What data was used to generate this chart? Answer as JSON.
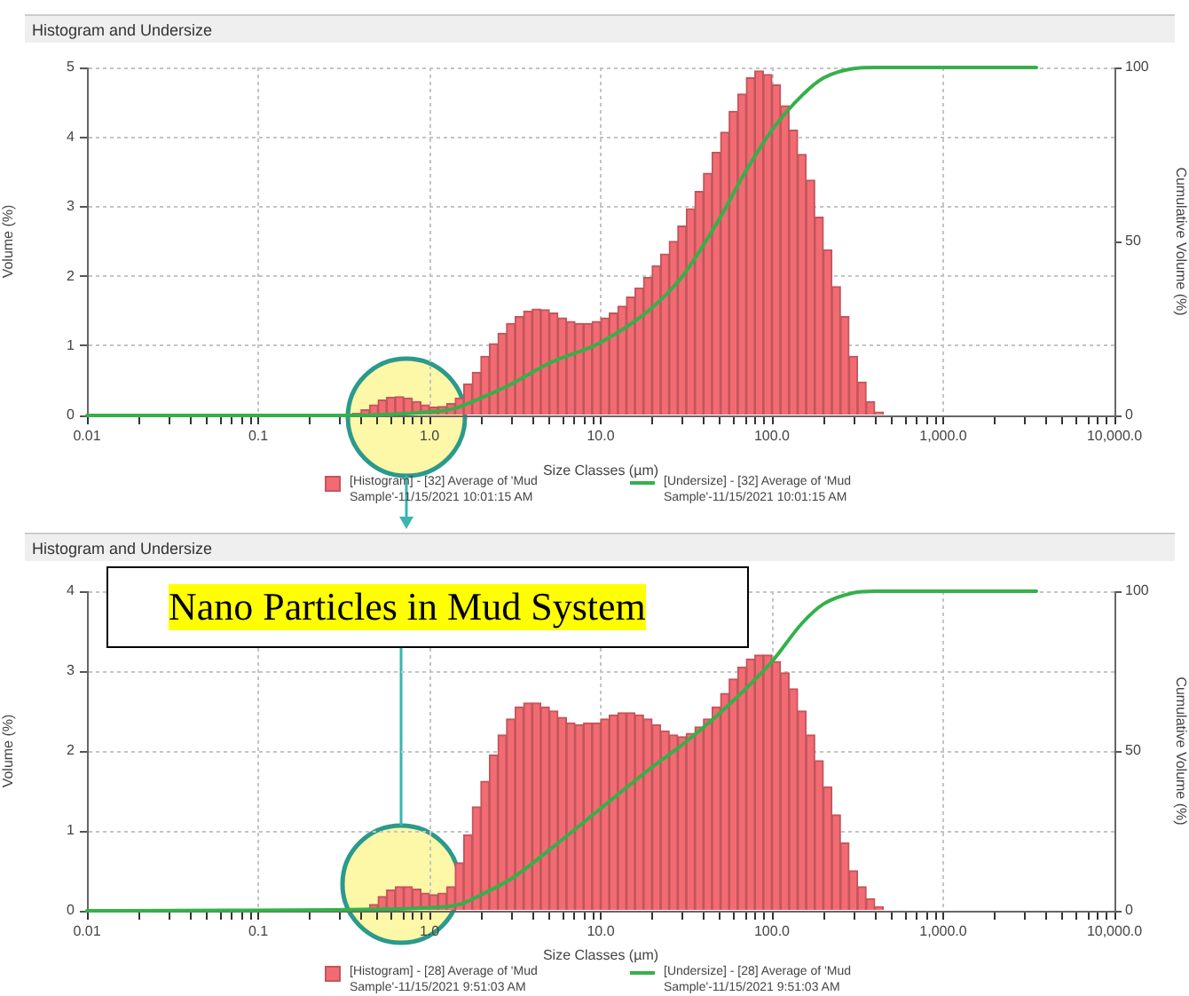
{
  "chart_data": [
    {
      "type": "histogram",
      "title": "Histogram and Undersize",
      "xlabel": "Size Classes (µm)",
      "ylabel": "Volume (%)",
      "y2label": "Cumulative Volume (%)",
      "log": "x",
      "xlim": [
        0.01,
        10000
      ],
      "xticks": [
        {
          "value": 0.01,
          "label": "0.01"
        },
        {
          "value": 0.02,
          "label": null
        },
        {
          "value": 0.03,
          "label": null
        },
        {
          "value": 0.04,
          "label": null
        },
        {
          "value": 0.05,
          "label": null
        },
        {
          "value": 0.06,
          "label": null
        },
        {
          "value": 0.07,
          "label": null
        },
        {
          "value": 0.08,
          "label": null
        },
        {
          "value": 0.09,
          "label": null
        },
        {
          "value": 0.1,
          "label": "0.1"
        },
        {
          "value": 0.2,
          "label": null
        },
        {
          "value": 0.3,
          "label": null
        },
        {
          "value": 0.4,
          "label": null
        },
        {
          "value": 0.5,
          "label": null
        },
        {
          "value": 0.6,
          "label": null
        },
        {
          "value": 0.7,
          "label": null
        },
        {
          "value": 0.8,
          "label": null
        },
        {
          "value": 0.9,
          "label": null
        },
        {
          "value": 1,
          "label": "1.0"
        },
        {
          "value": 2,
          "label": null
        },
        {
          "value": 3,
          "label": null
        },
        {
          "value": 4,
          "label": null
        },
        {
          "value": 5,
          "label": null
        },
        {
          "value": 6,
          "label": null
        },
        {
          "value": 7,
          "label": null
        },
        {
          "value": 8,
          "label": null
        },
        {
          "value": 9,
          "label": null
        },
        {
          "value": 10,
          "label": "10.0"
        },
        {
          "value": 20,
          "label": null
        },
        {
          "value": 30,
          "label": null
        },
        {
          "value": 40,
          "label": null
        },
        {
          "value": 50,
          "label": null
        },
        {
          "value": 60,
          "label": null
        },
        {
          "value": 70,
          "label": null
        },
        {
          "value": 80,
          "label": null
        },
        {
          "value": 90,
          "label": null
        },
        {
          "value": 100,
          "label": "100.0"
        },
        {
          "value": 200,
          "label": null
        },
        {
          "value": 300,
          "label": null
        },
        {
          "value": 400,
          "label": null
        },
        {
          "value": 500,
          "label": null
        },
        {
          "value": 600,
          "label": null
        },
        {
          "value": 700,
          "label": null
        },
        {
          "value": 800,
          "label": null
        },
        {
          "value": 900,
          "label": null
        },
        {
          "value": 1000,
          "label": "1,000.0"
        },
        {
          "value": 2000,
          "label": null
        },
        {
          "value": 3000,
          "label": null
        },
        {
          "value": 4000,
          "label": null
        },
        {
          "value": 5000,
          "label": null
        },
        {
          "value": 6000,
          "label": null
        },
        {
          "value": 7000,
          "label": null
        },
        {
          "value": 8000,
          "label": null
        },
        {
          "value": 9000,
          "label": null
        },
        {
          "value": 10000,
          "label": "10,000.0"
        }
      ],
      "ylim": [
        0,
        5
      ],
      "yticks": [
        0,
        1,
        2,
        3,
        4,
        5
      ],
      "y2lim": [
        0,
        100
      ],
      "y2ticks": [
        0,
        50,
        100
      ],
      "grid": true,
      "legend": "bottom",
      "series": [
        {
          "name": "[Histogram] - [32] Average of 'Mud Sample'-11/15/2021 10:01:15 AM",
          "color": "#f26b73",
          "bins": [
            0.3548,
            0.3981,
            0.4467,
            0.5012,
            0.5623,
            0.631,
            0.7079,
            0.7943,
            0.8913,
            1,
            1.122,
            1.259,
            1.413,
            1.585,
            1.778,
            1.995,
            2.239,
            2.512,
            2.818,
            3.162,
            3.548,
            3.981,
            4.467,
            5.012,
            5.623,
            6.31,
            7.079,
            7.943,
            8.913,
            10,
            11.22,
            12.59,
            14.13,
            15.85,
            17.78,
            19.95,
            22.39,
            25.12,
            28.18,
            31.62,
            35.48,
            39.81,
            44.67,
            50.12,
            56.23,
            63.1,
            70.79,
            79.43,
            89.13,
            100,
            112.2,
            125.9,
            141.3,
            158.5,
            177.8,
            199.5,
            223.9,
            251.2,
            281.8,
            316.2,
            354.8,
            398.1,
            446.7
          ],
          "values": [
            0.03,
            0.08,
            0.15,
            0.22,
            0.26,
            0.27,
            0.25,
            0.2,
            0.15,
            0.12,
            0.13,
            0.17,
            0.25,
            0.45,
            0.62,
            0.85,
            1.03,
            1.18,
            1.32,
            1.42,
            1.5,
            1.53,
            1.52,
            1.47,
            1.4,
            1.35,
            1.32,
            1.32,
            1.35,
            1.4,
            1.47,
            1.57,
            1.7,
            1.83,
            1.98,
            2.15,
            2.32,
            2.5,
            2.72,
            2.97,
            3.22,
            3.48,
            3.78,
            4.07,
            4.37,
            4.62,
            4.85,
            4.95,
            4.9,
            4.75,
            4.45,
            4.1,
            3.75,
            3.38,
            2.85,
            2.38,
            1.85,
            1.42,
            0.85,
            0.48,
            0.2,
            0.05
          ]
        },
        {
          "type": "line",
          "axis": "y2",
          "name": "[Undersize] - [32] Average of 'Mud Sample'-11/15/2021 10:01:15 AM",
          "color": "#35b04a",
          "x": [
            0.01,
            0.3,
            1,
            1.4,
            2,
            3,
            5,
            10,
            20,
            30,
            50,
            70,
            100,
            150,
            200,
            300,
            400,
            3500
          ],
          "values": [
            0,
            0,
            1,
            2,
            5,
            9,
            15,
            21,
            31,
            40,
            57,
            70,
            82,
            92,
            97,
            99.7,
            100,
            100
          ]
        }
      ]
    },
    {
      "type": "histogram",
      "title": "Histogram and Undersize",
      "xlabel": "Size Classes (µm)",
      "ylabel": "Volume (%)",
      "y2label": "Cumulative Volume (%)",
      "log": "x",
      "xlim": [
        0.01,
        10000
      ],
      "xticks": [
        {
          "value": 0.01,
          "label": "0.01"
        },
        {
          "value": 0.02,
          "label": null
        },
        {
          "value": 0.03,
          "label": null
        },
        {
          "value": 0.04,
          "label": null
        },
        {
          "value": 0.05,
          "label": null
        },
        {
          "value": 0.06,
          "label": null
        },
        {
          "value": 0.07,
          "label": null
        },
        {
          "value": 0.08,
          "label": null
        },
        {
          "value": 0.09,
          "label": null
        },
        {
          "value": 0.1,
          "label": "0.1"
        },
        {
          "value": 0.2,
          "label": null
        },
        {
          "value": 0.3,
          "label": null
        },
        {
          "value": 0.4,
          "label": null
        },
        {
          "value": 0.5,
          "label": null
        },
        {
          "value": 0.6,
          "label": null
        },
        {
          "value": 0.7,
          "label": null
        },
        {
          "value": 0.8,
          "label": null
        },
        {
          "value": 0.9,
          "label": null
        },
        {
          "value": 1,
          "label": "1.0"
        },
        {
          "value": 2,
          "label": null
        },
        {
          "value": 3,
          "label": null
        },
        {
          "value": 4,
          "label": null
        },
        {
          "value": 5,
          "label": null
        },
        {
          "value": 6,
          "label": null
        },
        {
          "value": 7,
          "label": null
        },
        {
          "value": 8,
          "label": null
        },
        {
          "value": 9,
          "label": null
        },
        {
          "value": 10,
          "label": "10.0"
        },
        {
          "value": 20,
          "label": null
        },
        {
          "value": 30,
          "label": null
        },
        {
          "value": 40,
          "label": null
        },
        {
          "value": 50,
          "label": null
        },
        {
          "value": 60,
          "label": null
        },
        {
          "value": 70,
          "label": null
        },
        {
          "value": 80,
          "label": null
        },
        {
          "value": 90,
          "label": null
        },
        {
          "value": 100,
          "label": "100.0"
        },
        {
          "value": 200,
          "label": null
        },
        {
          "value": 300,
          "label": null
        },
        {
          "value": 400,
          "label": null
        },
        {
          "value": 500,
          "label": null
        },
        {
          "value": 600,
          "label": null
        },
        {
          "value": 700,
          "label": null
        },
        {
          "value": 800,
          "label": null
        },
        {
          "value": 900,
          "label": null
        },
        {
          "value": 1000,
          "label": "1,000.0"
        },
        {
          "value": 2000,
          "label": null
        },
        {
          "value": 3000,
          "label": null
        },
        {
          "value": 4000,
          "label": null
        },
        {
          "value": 5000,
          "label": null
        },
        {
          "value": 6000,
          "label": null
        },
        {
          "value": 7000,
          "label": null
        },
        {
          "value": 8000,
          "label": null
        },
        {
          "value": 9000,
          "label": null
        },
        {
          "value": 10000,
          "label": "10,000.0"
        }
      ],
      "ylim": [
        0,
        4
      ],
      "yticks": [
        0,
        1,
        2,
        3,
        4
      ],
      "y2lim": [
        0,
        100
      ],
      "y2ticks": [
        0,
        50,
        100
      ],
      "grid": true,
      "legend": "bottom",
      "annotations": [
        "Nano Particles in Mud System"
      ],
      "series": [
        {
          "name": "[Histogram] - [28] Average of 'Mud Sample'-11/15/2021 9:51:03 AM",
          "color": "#f26b73",
          "bins": [
            0.4467,
            0.5012,
            0.5623,
            0.631,
            0.7079,
            0.7943,
            0.8913,
            1,
            1.122,
            1.259,
            1.413,
            1.585,
            1.778,
            1.995,
            2.239,
            2.512,
            2.818,
            3.162,
            3.548,
            3.981,
            4.467,
            5.012,
            5.623,
            6.31,
            7.079,
            7.943,
            8.913,
            10,
            11.22,
            12.59,
            14.13,
            15.85,
            17.78,
            19.95,
            22.39,
            25.12,
            28.18,
            31.62,
            35.48,
            39.81,
            44.67,
            50.12,
            56.23,
            63.1,
            70.79,
            79.43,
            89.13,
            100,
            112.2,
            125.9,
            141.3,
            158.5,
            177.8,
            199.5,
            223.9,
            251.2,
            281.8,
            316.2,
            354.8,
            398.1,
            446.7
          ],
          "values": [
            0.08,
            0.18,
            0.26,
            0.3,
            0.3,
            0.27,
            0.22,
            0.2,
            0.22,
            0.3,
            0.6,
            0.95,
            1.3,
            1.62,
            1.95,
            2.2,
            2.4,
            2.55,
            2.6,
            2.6,
            2.55,
            2.5,
            2.42,
            2.35,
            2.33,
            2.35,
            2.35,
            2.4,
            2.45,
            2.48,
            2.48,
            2.45,
            2.4,
            2.33,
            2.25,
            2.2,
            2.18,
            2.22,
            2.3,
            2.4,
            2.55,
            2.72,
            2.9,
            3.05,
            3.15,
            3.2,
            3.2,
            3.12,
            2.98,
            2.78,
            2.5,
            2.2,
            1.88,
            1.55,
            1.2,
            0.85,
            0.5,
            0.3,
            0.15,
            0.05
          ]
        },
        {
          "type": "line",
          "axis": "y2",
          "name": "[Undersize] - [28] Average of 'Mud Sample'-11/15/2021 9:51:03 AM",
          "color": "#35b04a",
          "x": [
            0.01,
            0.5,
            1,
            1.5,
            2,
            3,
            5,
            10,
            20,
            30,
            50,
            100,
            150,
            200,
            300,
            400,
            3500
          ],
          "values": [
            0,
            0.5,
            1,
            2,
            5,
            10,
            19,
            32,
            45,
            52,
            62,
            78,
            90,
            96,
            99.5,
            100,
            100
          ]
        }
      ]
    }
  ]
}
